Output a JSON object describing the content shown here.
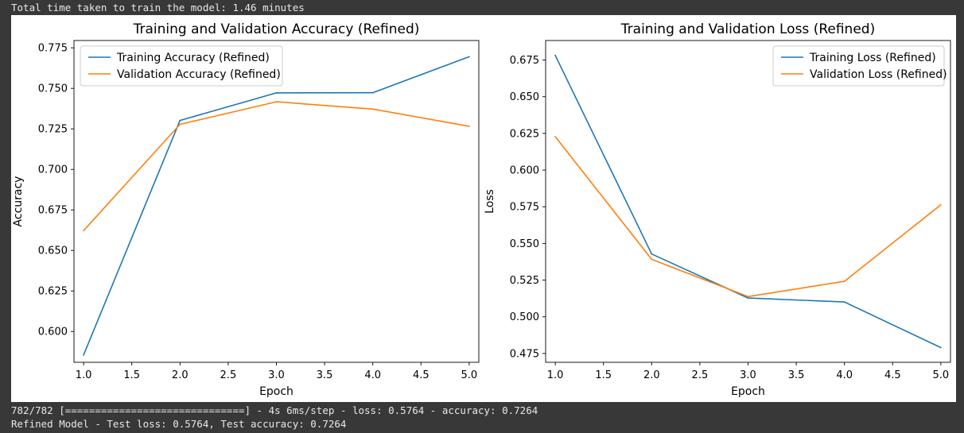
{
  "output": {
    "top_line": "Total time taken to train the model: 1.46 minutes",
    "bottom_line_1": "782/782 [==============================] - 4s 6ms/step - loss: 0.5764 - accuracy: 0.7264",
    "bottom_line_2": "Refined Model - Test loss: 0.5764, Test accuracy: 0.7264"
  },
  "chart_data": [
    {
      "type": "line",
      "title": "Training and Validation Accuracy (Refined)",
      "xlabel": "Epoch",
      "ylabel": "Accuracy",
      "xlim": [
        0.9,
        5.1
      ],
      "ylim": [
        0.581,
        0.7795
      ],
      "xticks": [
        "1.0",
        "1.5",
        "2.0",
        "2.5",
        "3.0",
        "3.5",
        "4.0",
        "4.5",
        "5.0"
      ],
      "yticks": [
        "0.600",
        "0.625",
        "0.650",
        "0.675",
        "0.700",
        "0.725",
        "0.750",
        "0.775"
      ],
      "legend_position": "top-left",
      "grid": false,
      "x": [
        1,
        2,
        3,
        4,
        5
      ],
      "series": [
        {
          "name": "Training Accuracy (Refined)",
          "color": "#1f77b4",
          "values": [
            0.5855,
            0.7302,
            0.7472,
            0.7473,
            0.7695
          ]
        },
        {
          "name": "Validation Accuracy (Refined)",
          "color": "#ff7f0e",
          "values": [
            0.6622,
            0.7278,
            0.7417,
            0.7372,
            0.7266
          ]
        }
      ]
    },
    {
      "type": "line",
      "title": "Training and Validation Loss (Refined)",
      "xlabel": "Epoch",
      "ylabel": "Loss",
      "xlim": [
        0.9,
        5.1
      ],
      "ylim": [
        0.469,
        0.6883
      ],
      "xticks": [
        "1.0",
        "1.5",
        "2.0",
        "2.5",
        "3.0",
        "3.5",
        "4.0",
        "4.5",
        "5.0"
      ],
      "yticks": [
        "0.475",
        "0.500",
        "0.525",
        "0.550",
        "0.575",
        "0.600",
        "0.625",
        "0.650",
        "0.675"
      ],
      "legend_position": "top-right",
      "grid": false,
      "x": [
        1,
        2,
        3,
        4,
        5
      ],
      "series": [
        {
          "name": "Training Loss (Refined)",
          "color": "#1f77b4",
          "values": [
            0.6782,
            0.5428,
            0.5128,
            0.5101,
            0.479
          ]
        },
        {
          "name": "Validation Loss (Refined)",
          "color": "#ff7f0e",
          "values": [
            0.6228,
            0.5392,
            0.5138,
            0.5242,
            0.5764
          ]
        }
      ]
    }
  ]
}
